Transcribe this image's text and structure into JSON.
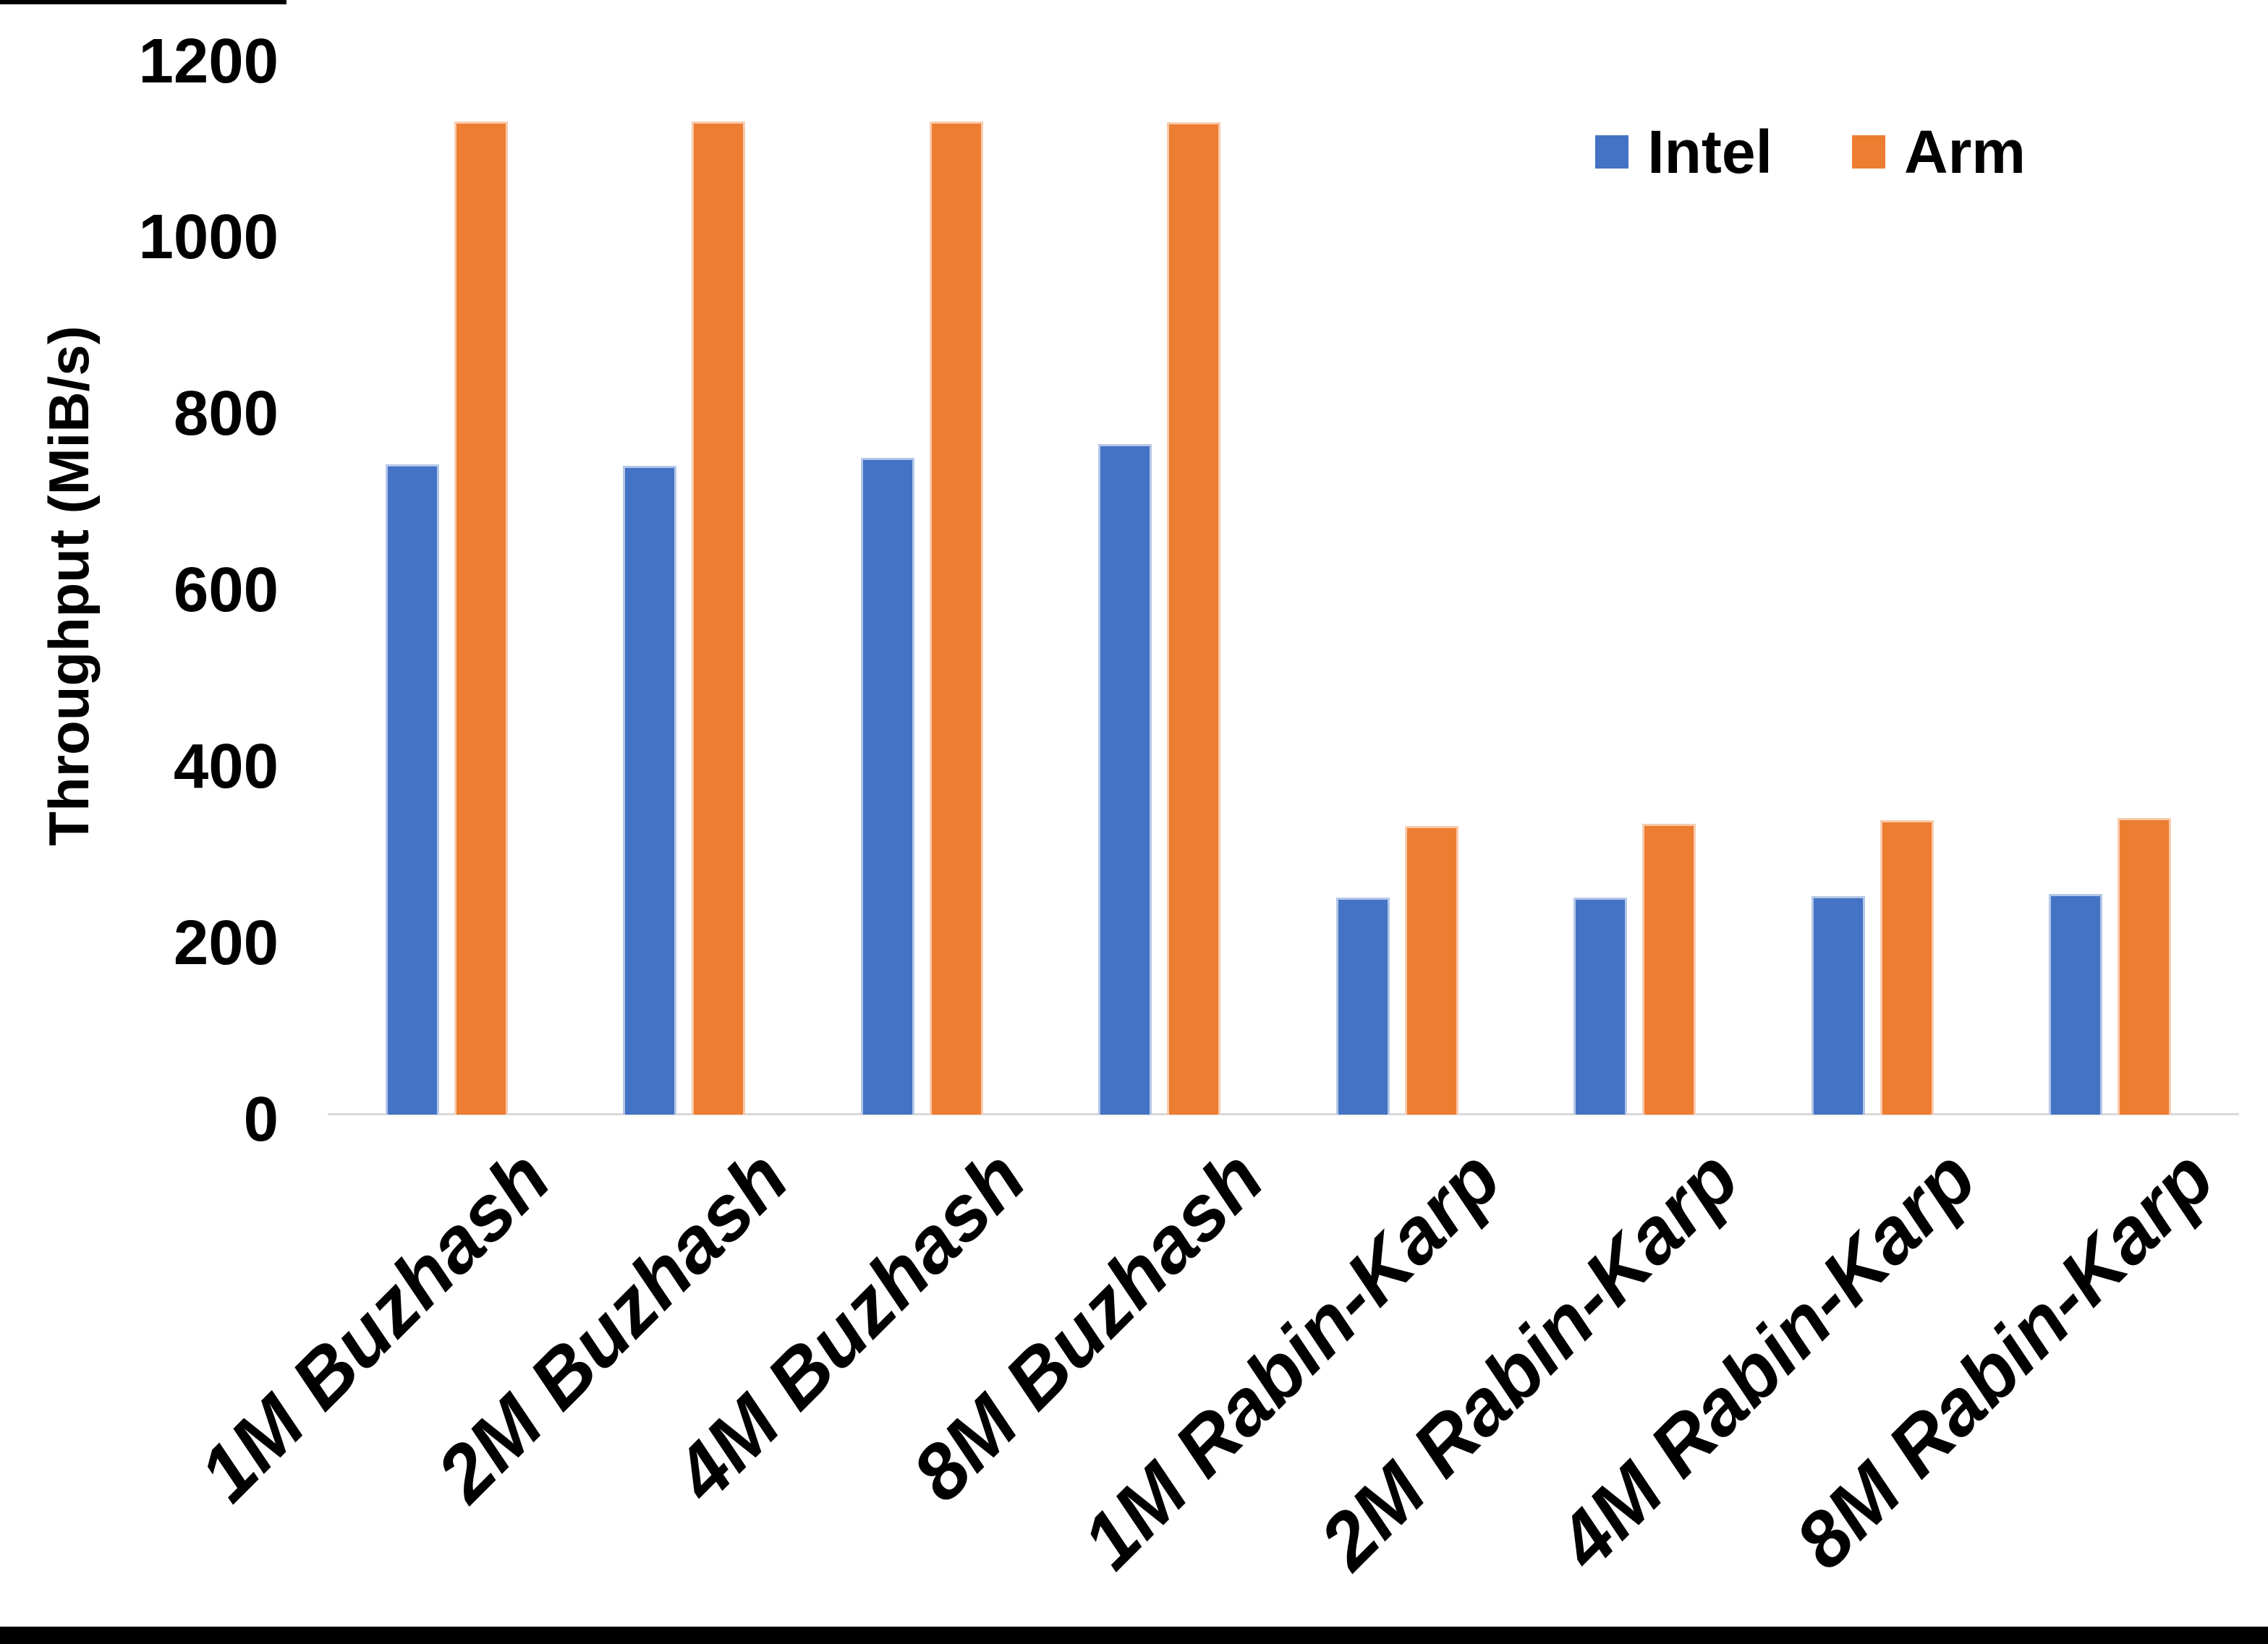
{
  "figure": {
    "background_color": "#ffffff",
    "bottom_border_color": "#000000",
    "top_left_edge_color": "#000000",
    "axis_line_color": "#D9D9D9",
    "text_color": "#000000"
  },
  "chart_data": {
    "type": "bar",
    "title": "",
    "xlabel": "",
    "ylabel": "Throughput (MiB/s)",
    "ylim": [
      0,
      1200
    ],
    "yticks": [
      0,
      200,
      400,
      600,
      800,
      1000,
      1200
    ],
    "grid": false,
    "legend_position": "top-right",
    "categories": [
      "1M Buzhash",
      "2M Buzhash",
      "4M Buzhash",
      "8M Buzhash",
      "1M Rabin-Karp",
      "2M Rabin-Karp",
      "4M Rabin-Karp",
      "8M Rabin-Karp"
    ],
    "series": [
      {
        "name": "Intel",
        "color": "#4472C4",
        "edge_color": "#B4C7E7",
        "values": [
          737,
          736,
          745,
          760,
          246,
          246,
          248,
          250
        ]
      },
      {
        "name": "Arm",
        "color": "#ED7D31",
        "edge_color": "#F8CBAD",
        "values": [
          1126,
          1126,
          1126,
          1125,
          327,
          330,
          334,
          336
        ]
      }
    ]
  }
}
